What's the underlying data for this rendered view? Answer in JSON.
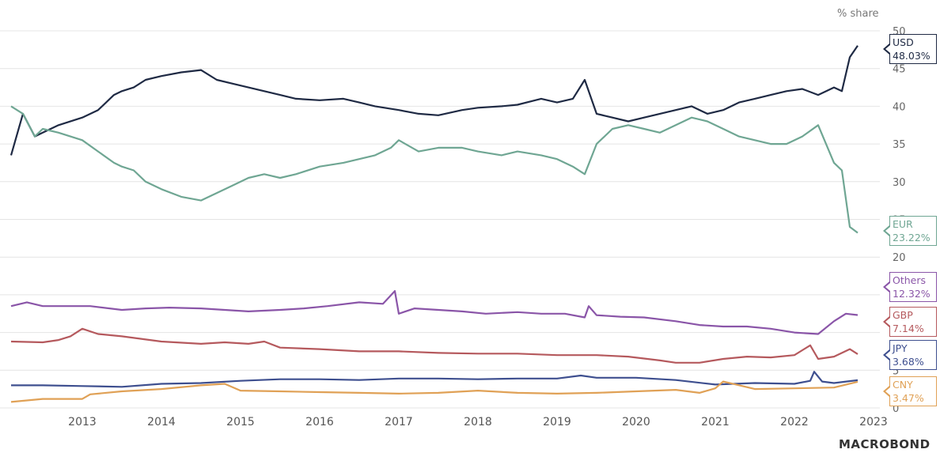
{
  "unit_label": "% share",
  "brand": "MACROBOND",
  "colors": {
    "USD": "#1f2a44",
    "EUR": "#6fa693",
    "Others": "#8a55a8",
    "GBP": "#b5595d",
    "JPY": "#3e4f8f",
    "CNY": "#e0a156",
    "grid": "#e4e4e4",
    "axis_text": "#555555"
  },
  "end_labels": [
    {
      "name": "USD",
      "value": "48.03%"
    },
    {
      "name": "EUR",
      "value": "23.22%"
    },
    {
      "name": "Others",
      "value": "12.32%"
    },
    {
      "name": "GBP",
      "value": "7.14%"
    },
    {
      "name": "JPY",
      "value": "3.68%"
    },
    {
      "name": "CNY",
      "value": "3.47%"
    }
  ],
  "chart_data": {
    "type": "line",
    "title": "",
    "xlabel": "",
    "ylabel": "% share",
    "x_ticks": [
      "2013",
      "2014",
      "2015",
      "2016",
      "2017",
      "2018",
      "2019",
      "2020",
      "2021",
      "2022",
      "2023"
    ],
    "y_ticks": [
      "0",
      "5",
      "10",
      "15",
      "20",
      "25",
      "30",
      "35",
      "40",
      "45",
      "50"
    ],
    "ylim": [
      0,
      50
    ],
    "grid": "horizontal",
    "xlim": [
      2012.6,
      2023.3
    ],
    "series": [
      {
        "name": "USD",
        "x": [
          2012.6,
          2012.75,
          2012.9,
          2013.0,
          2013.2,
          2013.5,
          2013.7,
          2013.9,
          2014.0,
          2014.15,
          2014.3,
          2014.5,
          2014.75,
          2015.0,
          2015.2,
          2015.4,
          2015.6,
          2015.8,
          2016.0,
          2016.2,
          2016.5,
          2016.8,
          2017.0,
          2017.2,
          2017.5,
          2017.75,
          2018.0,
          2018.3,
          2018.5,
          2018.8,
          2019.0,
          2019.3,
          2019.5,
          2019.7,
          2019.85,
          2020.0,
          2020.2,
          2020.4,
          2020.6,
          2020.8,
          2021.0,
          2021.2,
          2021.4,
          2021.6,
          2021.8,
          2022.0,
          2022.2,
          2022.4,
          2022.6,
          2022.8,
          2023.0,
          2023.1,
          2023.2,
          2023.3
        ],
        "y": [
          33.5,
          39,
          36,
          36.5,
          37.5,
          38.5,
          39.5,
          41.5,
          42,
          42.5,
          43.5,
          44,
          44.5,
          44.8,
          43.5,
          43,
          42.5,
          42,
          41.5,
          41,
          40.8,
          41,
          40.5,
          40,
          39.5,
          39,
          38.8,
          39.5,
          39.8,
          40,
          40.2,
          41,
          40.5,
          41,
          43.5,
          39,
          38.5,
          38,
          38.5,
          39,
          39.5,
          40,
          39,
          39.5,
          40.5,
          41,
          41.5,
          42,
          42.3,
          41.5,
          42.5,
          42,
          46.5,
          48.03
        ]
      },
      {
        "name": "EUR",
        "x": [
          2012.6,
          2012.75,
          2012.9,
          2013.0,
          2013.2,
          2013.5,
          2013.7,
          2013.9,
          2014.0,
          2014.15,
          2014.3,
          2014.5,
          2014.75,
          2015.0,
          2015.2,
          2015.4,
          2015.6,
          2015.8,
          2016.0,
          2016.2,
          2016.5,
          2016.8,
          2017.0,
          2017.2,
          2017.4,
          2017.5,
          2017.75,
          2018.0,
          2018.3,
          2018.5,
          2018.8,
          2019.0,
          2019.3,
          2019.5,
          2019.7,
          2019.85,
          2020.0,
          2020.2,
          2020.4,
          2020.6,
          2020.8,
          2021.0,
          2021.2,
          2021.4,
          2021.6,
          2021.8,
          2022.0,
          2022.2,
          2022.4,
          2022.6,
          2022.8,
          2023.0,
          2023.1,
          2023.2,
          2023.3
        ],
        "y": [
          40,
          39,
          36,
          37,
          36.5,
          35.5,
          34,
          32.5,
          32,
          31.5,
          30,
          29,
          28,
          27.5,
          28.5,
          29.5,
          30.5,
          31,
          30.5,
          31,
          32,
          32.5,
          33,
          33.5,
          34.5,
          35.5,
          34,
          34.5,
          34.5,
          34,
          33.5,
          34,
          33.5,
          33,
          32,
          31,
          35,
          37,
          37.5,
          37,
          36.5,
          37.5,
          38.5,
          38,
          37,
          36,
          35.5,
          35,
          35,
          36,
          37.5,
          32.5,
          31.5,
          24,
          23.22
        ]
      },
      {
        "name": "Others",
        "x": [
          2012.6,
          2012.8,
          2013.0,
          2013.3,
          2013.6,
          2014.0,
          2014.3,
          2014.6,
          2015.0,
          2015.3,
          2015.6,
          2016.0,
          2016.3,
          2016.6,
          2017.0,
          2017.3,
          2017.45,
          2017.5,
          2017.7,
          2018.0,
          2018.3,
          2018.6,
          2019.0,
          2019.3,
          2019.6,
          2019.85,
          2019.9,
          2020.0,
          2020.3,
          2020.6,
          2021.0,
          2021.3,
          2021.6,
          2021.9,
          2022.2,
          2022.5,
          2022.8,
          2023.0,
          2023.15,
          2023.3
        ],
        "y": [
          13.5,
          14,
          13.5,
          13.5,
          13.5,
          13,
          13.2,
          13.3,
          13.2,
          13,
          12.8,
          13,
          13.2,
          13.5,
          14,
          13.8,
          15.5,
          12.5,
          13.2,
          13,
          12.8,
          12.5,
          12.7,
          12.5,
          12.5,
          12,
          13.5,
          12.3,
          12.1,
          12,
          11.5,
          11,
          10.8,
          10.8,
          10.5,
          10,
          9.8,
          11.5,
          12.5,
          12.32
        ]
      },
      {
        "name": "GBP",
        "x": [
          2012.6,
          2013.0,
          2013.2,
          2013.35,
          2013.5,
          2013.7,
          2014.0,
          2014.5,
          2015.0,
          2015.3,
          2015.6,
          2015.8,
          2016.0,
          2016.5,
          2017.0,
          2017.5,
          2018.0,
          2018.5,
          2019.0,
          2019.5,
          2020.0,
          2020.4,
          2020.8,
          2021.0,
          2021.3,
          2021.6,
          2021.9,
          2022.2,
          2022.5,
          2022.7,
          2022.8,
          2023.0,
          2023.2,
          2023.3
        ],
        "y": [
          8.8,
          8.7,
          9,
          9.5,
          10.5,
          9.8,
          9.5,
          8.8,
          8.5,
          8.7,
          8.5,
          8.8,
          8,
          7.8,
          7.5,
          7.5,
          7.3,
          7.2,
          7.2,
          7.0,
          7.0,
          6.8,
          6.3,
          6.0,
          6.0,
          6.5,
          6.8,
          6.7,
          7.0,
          8.3,
          6.5,
          6.8,
          7.8,
          7.14
        ]
      },
      {
        "name": "JPY",
        "x": [
          2012.6,
          2013.0,
          2013.5,
          2014.0,
          2014.5,
          2015.0,
          2015.5,
          2016.0,
          2016.5,
          2017.0,
          2017.5,
          2018.0,
          2018.5,
          2019.0,
          2019.5,
          2019.8,
          2020.0,
          2020.5,
          2021.0,
          2021.5,
          2022.0,
          2022.5,
          2022.7,
          2022.75,
          2022.85,
          2023.0,
          2023.3
        ],
        "y": [
          3.0,
          3.0,
          2.9,
          2.8,
          3.2,
          3.3,
          3.6,
          3.8,
          3.8,
          3.7,
          3.9,
          3.9,
          3.8,
          3.9,
          3.9,
          4.3,
          4.0,
          4.0,
          3.7,
          3.1,
          3.3,
          3.2,
          3.6,
          4.8,
          3.5,
          3.3,
          3.68
        ]
      },
      {
        "name": "CNY",
        "x": [
          2012.6,
          2013.0,
          2013.5,
          2013.6,
          2014.0,
          2014.5,
          2015.0,
          2015.3,
          2015.5,
          2016.0,
          2016.5,
          2017.0,
          2017.5,
          2018.0,
          2018.5,
          2019.0,
          2019.5,
          2020.0,
          2020.5,
          2021.0,
          2021.3,
          2021.5,
          2021.6,
          2022.0,
          2022.5,
          2023.0,
          2023.3
        ],
        "y": [
          0.8,
          1.2,
          1.2,
          1.8,
          2.2,
          2.5,
          3.0,
          3.2,
          2.3,
          2.2,
          2.1,
          2.0,
          1.9,
          2.0,
          2.3,
          2.0,
          1.9,
          2.0,
          2.2,
          2.4,
          2.0,
          2.6,
          3.5,
          2.5,
          2.6,
          2.7,
          3.47
        ]
      }
    ]
  }
}
